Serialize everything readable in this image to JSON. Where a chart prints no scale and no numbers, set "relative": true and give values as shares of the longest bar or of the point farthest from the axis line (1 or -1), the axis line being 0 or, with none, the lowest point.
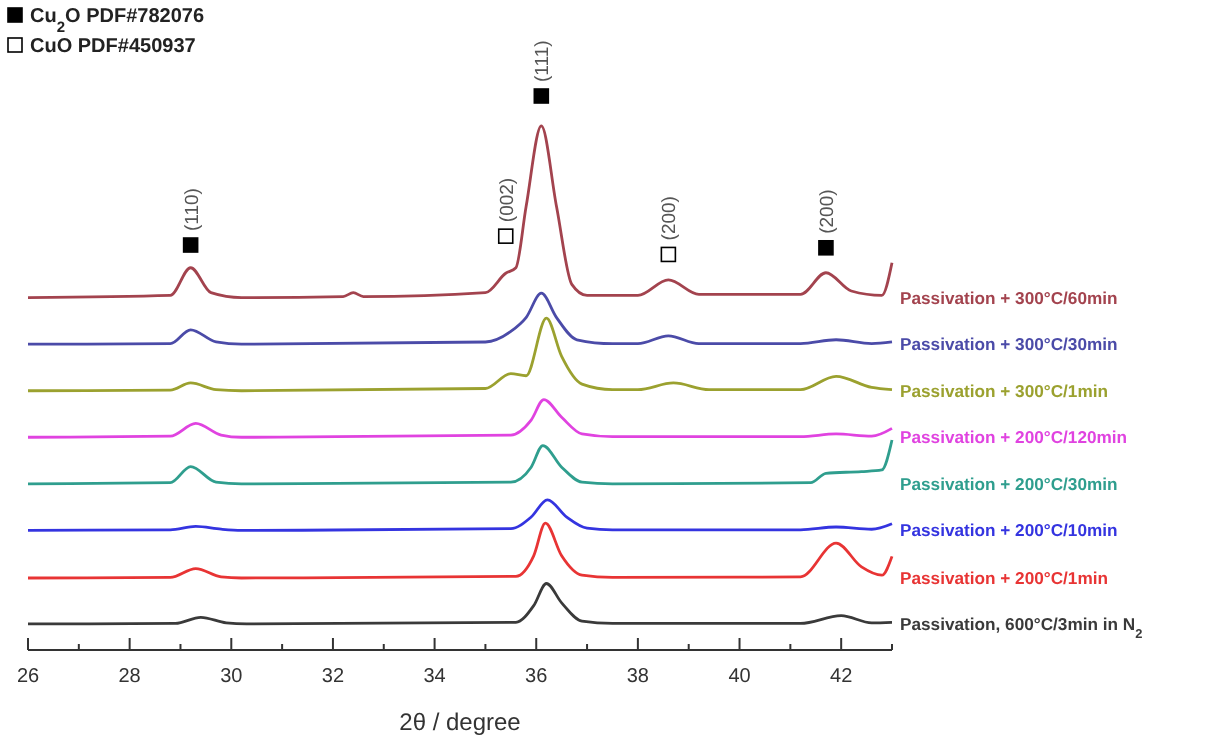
{
  "chart_data": {
    "type": "line",
    "relative": true,
    "xlabel": "2θ / degree",
    "xlim": [
      26,
      43
    ],
    "xticks": [
      26,
      {
        "value": 27,
        "label": null
      },
      28,
      {
        "value": 29,
        "label": null
      },
      30,
      {
        "value": 31,
        "label": null
      },
      32,
      {
        "value": 33,
        "label": null
      },
      34,
      {
        "value": 35,
        "label": null
      },
      36,
      {
        "value": 37,
        "label": null
      },
      38,
      {
        "value": 39,
        "label": null
      },
      40,
      {
        "value": 41,
        "label": null
      },
      42,
      {
        "value": 43,
        "label": null
      }
    ],
    "legend": "top left",
    "line_style": "solid",
    "series": [
      {
        "name": "Passivation + 300°C/60min",
        "color": "#a3434e",
        "x": [
          26,
          28.8,
          29.2,
          29.6,
          30.2,
          32.2,
          32.4,
          32.6,
          35.0,
          35.4,
          35.6,
          35.8,
          36.1,
          36.4,
          36.7,
          37.0,
          38.0,
          38.6,
          39.2,
          41.2,
          41.7,
          42.2,
          42.8,
          43
        ],
        "values": [
          0.636,
          0.64,
          0.69,
          0.645,
          0.636,
          0.638,
          0.645,
          0.638,
          0.645,
          0.68,
          0.69,
          0.8,
          0.946,
          0.8,
          0.66,
          0.64,
          0.64,
          0.668,
          0.642,
          0.642,
          0.681,
          0.648,
          0.64,
          0.699
        ]
      },
      {
        "name": "Passivation + 300°C/30min",
        "color": "#4b4ba8",
        "x": [
          26,
          28.8,
          29.2,
          29.7,
          30.2,
          35.0,
          35.5,
          35.8,
          36.1,
          36.4,
          36.8,
          37.5,
          38.0,
          38.6,
          39.2,
          41.2,
          41.9,
          42.6,
          43
        ],
        "values": [
          0.552,
          0.553,
          0.578,
          0.556,
          0.552,
          0.556,
          0.575,
          0.6,
          0.644,
          0.6,
          0.56,
          0.553,
          0.553,
          0.567,
          0.553,
          0.553,
          0.56,
          0.553,
          0.556
        ]
      },
      {
        "name": "Passivation + 300°C/1min",
        "color": "#9ba12f",
        "x": [
          26,
          28.8,
          29.2,
          29.7,
          30.2,
          35.0,
          35.5,
          35.8,
          36.2,
          36.5,
          36.9,
          37.5,
          38.0,
          38.7,
          39.4,
          41.2,
          41.9,
          42.6,
          43
        ],
        "values": [
          0.468,
          0.469,
          0.482,
          0.47,
          0.468,
          0.472,
          0.499,
          0.495,
          0.599,
          0.53,
          0.48,
          0.47,
          0.47,
          0.482,
          0.47,
          0.47,
          0.494,
          0.474,
          0.47
        ]
      },
      {
        "name": "Passivation + 200°C/120min",
        "color": "#e043e0",
        "x": [
          26,
          28.8,
          29.3,
          29.8,
          30.2,
          35.5,
          35.9,
          36.15,
          36.5,
          36.9,
          37.5,
          41.2,
          41.9,
          42.6,
          43
        ],
        "values": [
          0.384,
          0.386,
          0.409,
          0.388,
          0.384,
          0.388,
          0.415,
          0.452,
          0.42,
          0.39,
          0.385,
          0.385,
          0.39,
          0.386,
          0.4
        ]
      },
      {
        "name": "Passivation + 200°C/30min",
        "color": "#2f9e8e",
        "x": [
          26,
          28.8,
          29.2,
          29.7,
          30.2,
          35.5,
          35.9,
          36.13,
          36.5,
          36.9,
          37.5,
          41.4,
          41.7,
          42.4,
          42.8,
          43
        ],
        "values": [
          0.3,
          0.302,
          0.331,
          0.303,
          0.3,
          0.303,
          0.33,
          0.369,
          0.33,
          0.303,
          0.3,
          0.302,
          0.319,
          0.322,
          0.325,
          0.379
        ]
      },
      {
        "name": "Passivation + 200°C/10min",
        "color": "#3434e0",
        "x": [
          26,
          28.8,
          29.3,
          29.8,
          30.2,
          35.5,
          35.9,
          36.22,
          36.6,
          37.0,
          37.5,
          41.2,
          41.9,
          42.6,
          43
        ],
        "values": [
          0.216,
          0.217,
          0.223,
          0.218,
          0.216,
          0.219,
          0.24,
          0.271,
          0.24,
          0.22,
          0.217,
          0.217,
          0.222,
          0.218,
          0.228
        ]
      },
      {
        "name": "Passivation + 200°C/1min",
        "color": "#e83434",
        "x": [
          26,
          28.8,
          29.3,
          29.8,
          30.2,
          35.6,
          35.95,
          36.18,
          36.5,
          36.9,
          37.5,
          41.2,
          41.9,
          42.4,
          42.8,
          43
        ],
        "values": [
          0.13,
          0.131,
          0.147,
          0.132,
          0.13,
          0.133,
          0.17,
          0.229,
          0.17,
          0.135,
          0.131,
          0.132,
          0.193,
          0.15,
          0.135,
          0.169
        ]
      },
      {
        "name": "Passivation, 600°C/3min in N$_{2}$",
        "color": "#3a3a3a",
        "x": [
          26,
          28.9,
          29.4,
          29.9,
          30.3,
          35.6,
          35.95,
          36.2,
          36.5,
          36.9,
          37.5,
          41.2,
          42.0,
          42.6,
          43
        ],
        "values": [
          0.047,
          0.048,
          0.059,
          0.049,
          0.047,
          0.05,
          0.08,
          0.12,
          0.085,
          0.052,
          0.048,
          0.048,
          0.062,
          0.049,
          0.05
        ]
      },
      {
        "name": "Cu$_{2}$O PDF#782076",
        "type": "scatter",
        "marker": "square",
        "color": "#000000",
        "x": [
          29.2,
          36.1,
          41.7
        ],
        "values": [
          0.731,
          1.0,
          0.726
        ]
      },
      {
        "name": "CuO  PDF#450937",
        "type": "scatter",
        "marker": "square",
        "color": "#ffffff",
        "x": [
          35.4,
          38.6
        ],
        "values": [
          0.747,
          0.714
        ]
      }
    ],
    "annotations": [
      {
        "text": "(110)",
        "x": 29.2,
        "y": 0.731
      },
      {
        "text": "(002)",
        "x": 35.4,
        "y": 0.747
      },
      {
        "text": "(111)",
        "x": 36.1,
        "y": 1.0
      },
      {
        "text": "(200)",
        "x": 38.6,
        "y": 0.714
      },
      {
        "text": "(200)",
        "x": 41.7,
        "y": 0.726
      }
    ]
  }
}
